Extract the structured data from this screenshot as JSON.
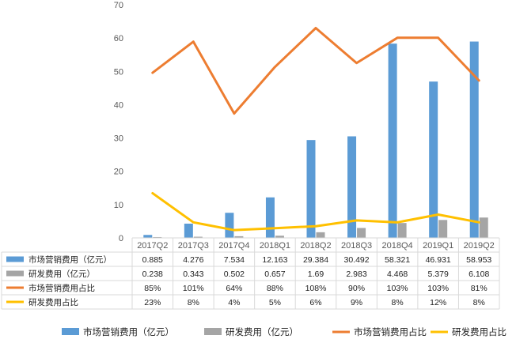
{
  "chart_data": {
    "type": "bar",
    "categories": [
      "2017Q2",
      "2017Q3",
      "2017Q4",
      "2018Q1",
      "2018Q2",
      "2018Q3",
      "2018Q4",
      "2019Q1",
      "2019Q2"
    ],
    "ylim": [
      0,
      70
    ],
    "yticks": [
      0,
      10,
      20,
      30,
      40,
      50,
      60,
      70
    ],
    "series": [
      {
        "name": "市场营销费用（亿元）",
        "kind": "bar",
        "color": "#5b9bd5",
        "values": [
          0.885,
          4.276,
          7.534,
          12.163,
          29.384,
          30.492,
          58.321,
          46.931,
          58.953
        ],
        "labels": [
          "0.885",
          "4.276",
          "7.534",
          "12.163",
          "29.384",
          "30.492",
          "58.321",
          "46.931",
          "58.953"
        ]
      },
      {
        "name": "研发费用（亿元）",
        "kind": "bar",
        "color": "#a5a5a5",
        "values": [
          0.238,
          0.343,
          0.502,
          0.657,
          1.69,
          2.983,
          4.468,
          5.379,
          6.108
        ],
        "labels": [
          "0.238",
          "0.343",
          "0.502",
          "0.657",
          "1.69",
          "2.983",
          "4.468",
          "5.379",
          "6.108"
        ]
      },
      {
        "name": "市场营销费用占比",
        "kind": "line",
        "axis": "secondary",
        "color": "#ed7d31",
        "values": [
          85,
          101,
          64,
          88,
          108,
          90,
          103,
          103,
          81
        ],
        "labels": [
          "85%",
          "101%",
          "64%",
          "88%",
          "108%",
          "90%",
          "103%",
          "103%",
          "81%"
        ]
      },
      {
        "name": "研发费用占比",
        "kind": "line",
        "axis": "secondary",
        "color": "#ffc000",
        "values": [
          23,
          8,
          4,
          5,
          6,
          9,
          8,
          12,
          8
        ],
        "labels": [
          "23%",
          "8%",
          "4%",
          "5%",
          "6%",
          "9%",
          "8%",
          "12%",
          "8%"
        ]
      }
    ],
    "secondary_ylim": [
      0,
      120
    ],
    "grid": false,
    "legend": "bottom"
  }
}
